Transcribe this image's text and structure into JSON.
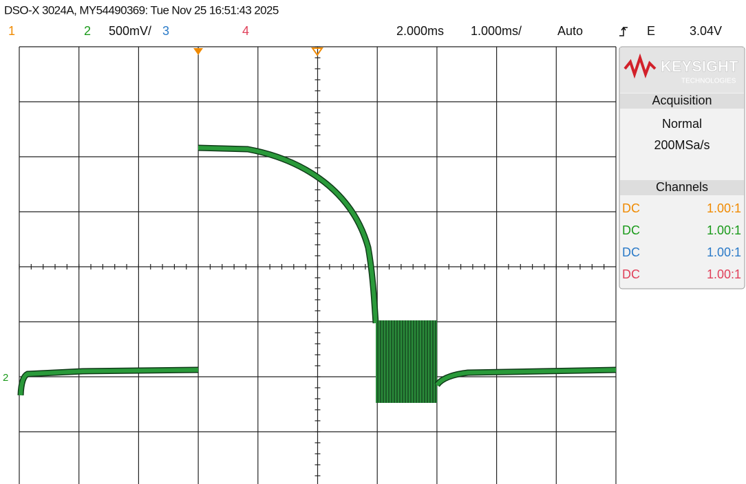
{
  "header": {
    "title": "DSO-X 3024A, MY54490369: Tue Nov 25 16:51:43 2025"
  },
  "status_bar": {
    "ch1": "1",
    "ch2": "2",
    "ch2_scale": "500mV/",
    "ch3": "3",
    "ch4": "4",
    "time_delay": "2.000ms",
    "time_scale": "1.000ms/",
    "trigger_mode": "Auto",
    "trigger_coupling": "E",
    "trigger_level": "3.04V"
  },
  "screen": {
    "ground_marker": "2"
  },
  "panel": {
    "logo": "KEYSIGHT",
    "logo_sub": "TECHNOLOGIES",
    "acquisition": {
      "heading": "Acquisition",
      "mode": "Normal",
      "rate": "200MSa/s"
    },
    "channels": {
      "heading": "Channels",
      "rows": [
        [
          "DC",
          "1.00:1"
        ],
        [
          "DC",
          "1.00:1"
        ],
        [
          "DC",
          "1.00:1"
        ],
        [
          "DC",
          "1.00:1"
        ]
      ]
    }
  }
}
